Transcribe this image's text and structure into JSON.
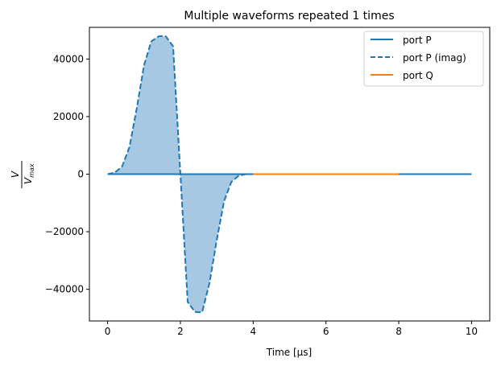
{
  "chart_data": {
    "type": "line",
    "title": "Multiple waveforms repeated 1 times",
    "xlabel": "Time [μs]",
    "ylabel_num": "V",
    "ylabel_den_main": "V",
    "ylabel_den_sub": "max",
    "xlim": [
      -0.5,
      10.5
    ],
    "ylim": [
      -51000,
      51000
    ],
    "xticks": [
      0,
      2,
      4,
      6,
      8,
      10
    ],
    "yticks": [
      -40000,
      -20000,
      0,
      20000,
      40000
    ],
    "grid": false,
    "legend_position": "top-right",
    "series": [
      {
        "name": "port P",
        "color": "#1f77b4",
        "style": "solid",
        "x": [
          0,
          10
        ],
        "y": [
          0,
          0
        ]
      },
      {
        "name": "port P (imag)",
        "color": "#1f77b4",
        "style": "dashed",
        "fill_color": "#a6c8e2",
        "x": [
          0,
          0.2,
          0.4,
          0.6,
          0.8,
          1.0,
          1.2,
          1.4,
          1.5,
          1.6,
          1.8,
          2.0,
          2.2,
          2.4,
          2.5,
          2.6,
          2.8,
          3.0,
          3.2,
          3.4,
          3.6,
          3.8,
          4.0
        ],
        "y": [
          0,
          550,
          2710,
          9430,
          22800,
          37800,
          46100,
          47850,
          48000,
          47850,
          44400,
          0,
          -44400,
          -47850,
          -48000,
          -47850,
          -37800,
          -22800,
          -9430,
          -2710,
          -550,
          -20,
          0
        ]
      },
      {
        "name": "port Q",
        "color": "#ff7f0e",
        "style": "solid",
        "x": [
          4,
          8
        ],
        "y": [
          0,
          0
        ]
      }
    ]
  }
}
